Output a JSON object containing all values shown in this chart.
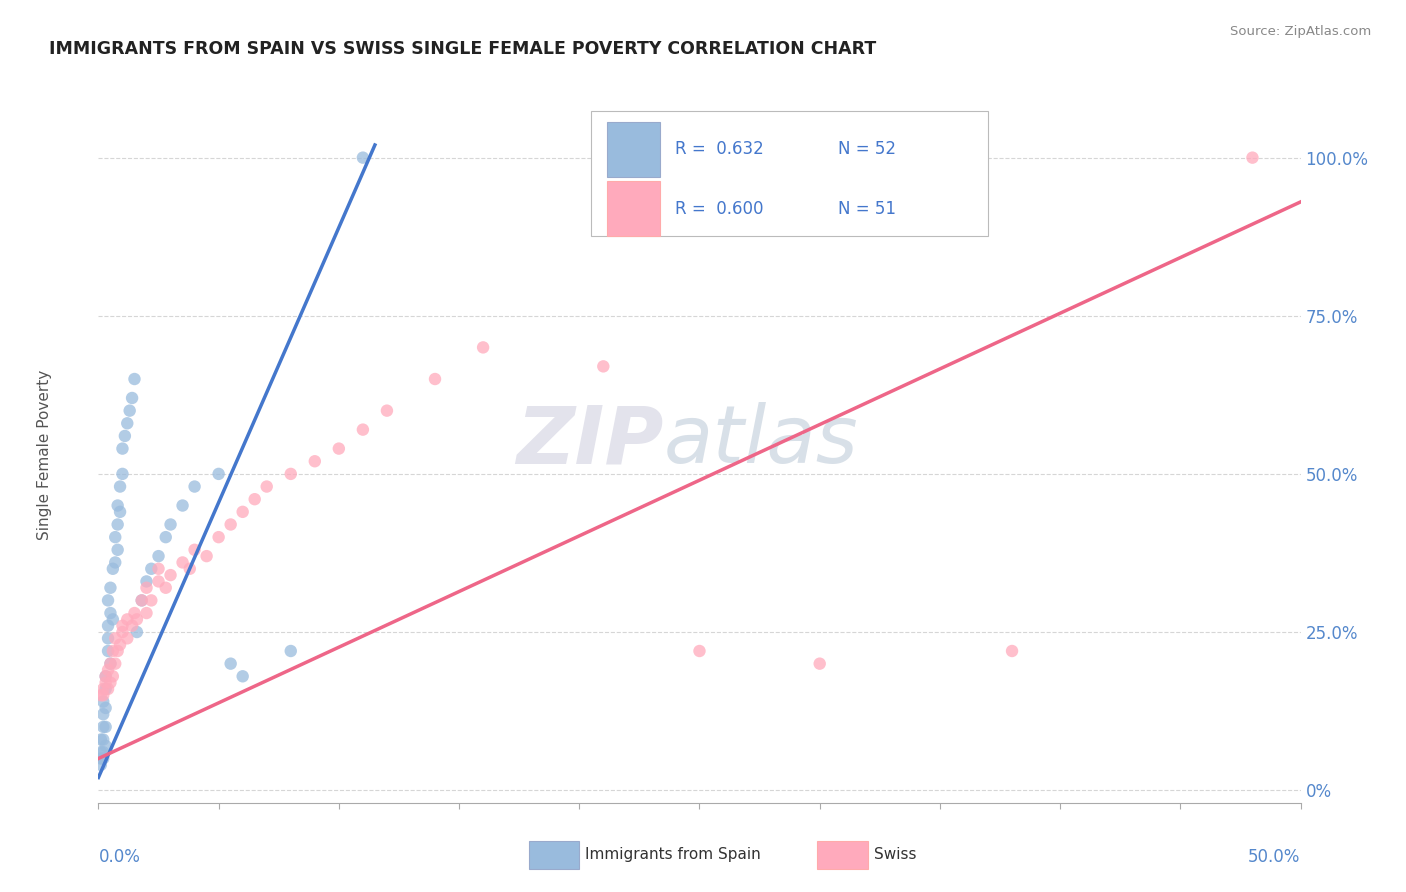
{
  "title": "IMMIGRANTS FROM SPAIN VS SWISS SINGLE FEMALE POVERTY CORRELATION CHART",
  "source": "Source: ZipAtlas.com",
  "ylabel": "Single Female Poverty",
  "ylabel_right_ticks": [
    "0%",
    "25.0%",
    "50.0%",
    "75.0%",
    "100.0%"
  ],
  "ylabel_right_vals": [
    0.0,
    0.25,
    0.5,
    0.75,
    1.0
  ],
  "xmin": 0.0,
  "xmax": 0.5,
  "ymin": -0.02,
  "ymax": 1.08,
  "blue_color": "#99BBDD",
  "pink_color": "#FFAABC",
  "blue_line_color": "#4477CC",
  "pink_line_color": "#EE6688",
  "blue_scatter": [
    [
      0.001,
      0.04
    ],
    [
      0.001,
      0.05
    ],
    [
      0.001,
      0.06
    ],
    [
      0.001,
      0.08
    ],
    [
      0.002,
      0.05
    ],
    [
      0.002,
      0.06
    ],
    [
      0.002,
      0.08
    ],
    [
      0.002,
      0.1
    ],
    [
      0.002,
      0.12
    ],
    [
      0.002,
      0.14
    ],
    [
      0.003,
      0.07
    ],
    [
      0.003,
      0.1
    ],
    [
      0.003,
      0.13
    ],
    [
      0.003,
      0.16
    ],
    [
      0.003,
      0.18
    ],
    [
      0.004,
      0.22
    ],
    [
      0.004,
      0.24
    ],
    [
      0.004,
      0.26
    ],
    [
      0.004,
      0.3
    ],
    [
      0.005,
      0.2
    ],
    [
      0.005,
      0.28
    ],
    [
      0.005,
      0.32
    ],
    [
      0.006,
      0.27
    ],
    [
      0.006,
      0.35
    ],
    [
      0.007,
      0.36
    ],
    [
      0.007,
      0.4
    ],
    [
      0.008,
      0.38
    ],
    [
      0.008,
      0.42
    ],
    [
      0.008,
      0.45
    ],
    [
      0.009,
      0.44
    ],
    [
      0.009,
      0.48
    ],
    [
      0.01,
      0.5
    ],
    [
      0.01,
      0.54
    ],
    [
      0.011,
      0.56
    ],
    [
      0.012,
      0.58
    ],
    [
      0.013,
      0.6
    ],
    [
      0.014,
      0.62
    ],
    [
      0.015,
      0.65
    ],
    [
      0.016,
      0.25
    ],
    [
      0.018,
      0.3
    ],
    [
      0.02,
      0.33
    ],
    [
      0.022,
      0.35
    ],
    [
      0.025,
      0.37
    ],
    [
      0.028,
      0.4
    ],
    [
      0.03,
      0.42
    ],
    [
      0.035,
      0.45
    ],
    [
      0.04,
      0.48
    ],
    [
      0.05,
      0.5
    ],
    [
      0.055,
      0.2
    ],
    [
      0.06,
      0.18
    ],
    [
      0.08,
      0.22
    ],
    [
      0.11,
      1.0
    ]
  ],
  "pink_scatter": [
    [
      0.001,
      0.15
    ],
    [
      0.002,
      0.15
    ],
    [
      0.002,
      0.16
    ],
    [
      0.003,
      0.17
    ],
    [
      0.003,
      0.18
    ],
    [
      0.004,
      0.16
    ],
    [
      0.004,
      0.19
    ],
    [
      0.005,
      0.17
    ],
    [
      0.005,
      0.2
    ],
    [
      0.006,
      0.18
    ],
    [
      0.006,
      0.22
    ],
    [
      0.007,
      0.2
    ],
    [
      0.007,
      0.24
    ],
    [
      0.008,
      0.22
    ],
    [
      0.009,
      0.23
    ],
    [
      0.01,
      0.25
    ],
    [
      0.01,
      0.26
    ],
    [
      0.012,
      0.24
    ],
    [
      0.012,
      0.27
    ],
    [
      0.014,
      0.26
    ],
    [
      0.015,
      0.28
    ],
    [
      0.016,
      0.27
    ],
    [
      0.018,
      0.3
    ],
    [
      0.02,
      0.28
    ],
    [
      0.02,
      0.32
    ],
    [
      0.022,
      0.3
    ],
    [
      0.025,
      0.33
    ],
    [
      0.025,
      0.35
    ],
    [
      0.028,
      0.32
    ],
    [
      0.03,
      0.34
    ],
    [
      0.035,
      0.36
    ],
    [
      0.038,
      0.35
    ],
    [
      0.04,
      0.38
    ],
    [
      0.045,
      0.37
    ],
    [
      0.05,
      0.4
    ],
    [
      0.055,
      0.42
    ],
    [
      0.06,
      0.44
    ],
    [
      0.065,
      0.46
    ],
    [
      0.07,
      0.48
    ],
    [
      0.08,
      0.5
    ],
    [
      0.09,
      0.52
    ],
    [
      0.1,
      0.54
    ],
    [
      0.11,
      0.57
    ],
    [
      0.12,
      0.6
    ],
    [
      0.14,
      0.65
    ],
    [
      0.16,
      0.7
    ],
    [
      0.21,
      0.67
    ],
    [
      0.25,
      0.22
    ],
    [
      0.3,
      0.2
    ],
    [
      0.38,
      0.22
    ],
    [
      0.48,
      1.0
    ]
  ],
  "blue_trendline_x": [
    0.0,
    0.115
  ],
  "blue_trendline_y": [
    0.02,
    1.02
  ],
  "pink_trendline_x": [
    0.0,
    0.5
  ],
  "pink_trendline_y": [
    0.05,
    0.93
  ],
  "watermark_zip": "ZIP",
  "watermark_atlas": "atlas",
  "background_color": "#FFFFFF",
  "grid_color": "#CCCCCC",
  "title_color": "#222222",
  "axis_label_color": "#5588CC",
  "right_axis_color": "#5588CC"
}
